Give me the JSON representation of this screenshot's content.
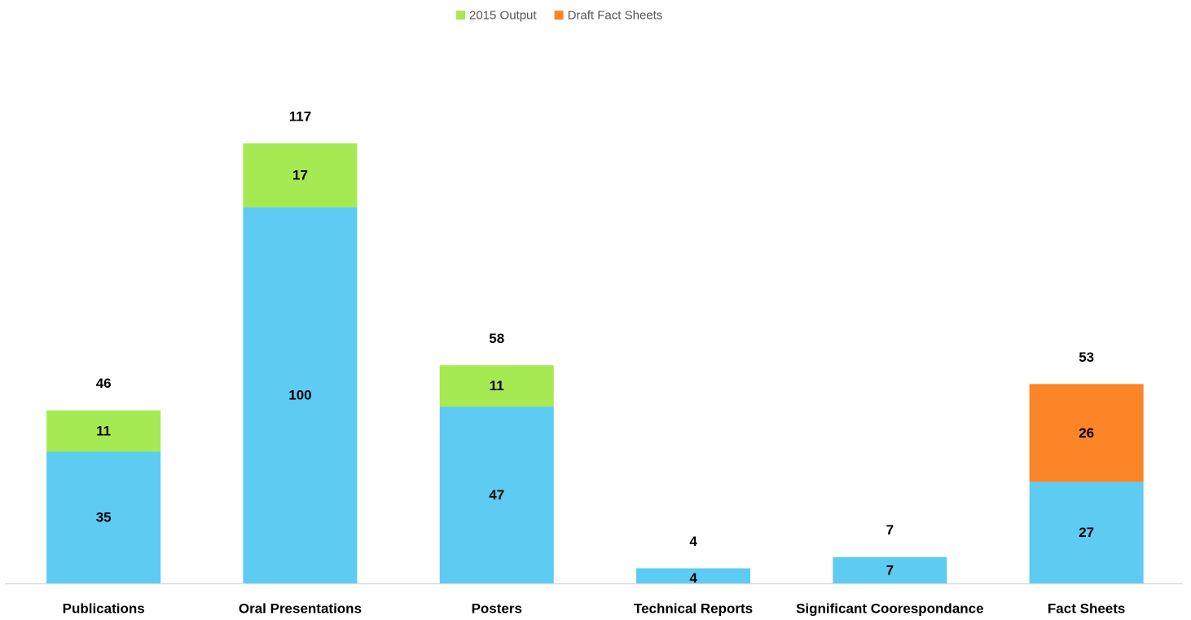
{
  "chart_data": {
    "type": "stacked_bar",
    "categories": [
      "Publications",
      "Oral Presentations",
      "Posters",
      "Technical Reports",
      "Significant Coorespondance",
      "Fact Sheets"
    ],
    "series": [
      {
        "color": "#5ecbf3",
        "values": [
          35,
          100,
          47,
          4,
          7,
          27
        ]
      },
      {
        "name": "2015 Output",
        "color": "#a5ea52",
        "values": [
          11,
          17,
          11,
          null,
          null,
          null
        ]
      },
      {
        "name": "Draft Fact Sheets",
        "color": "#fb8527",
        "values": [
          null,
          null,
          null,
          null,
          null,
          26
        ]
      }
    ],
    "totals": [
      46,
      117,
      58,
      4,
      7,
      53
    ],
    "legend": "top"
  }
}
